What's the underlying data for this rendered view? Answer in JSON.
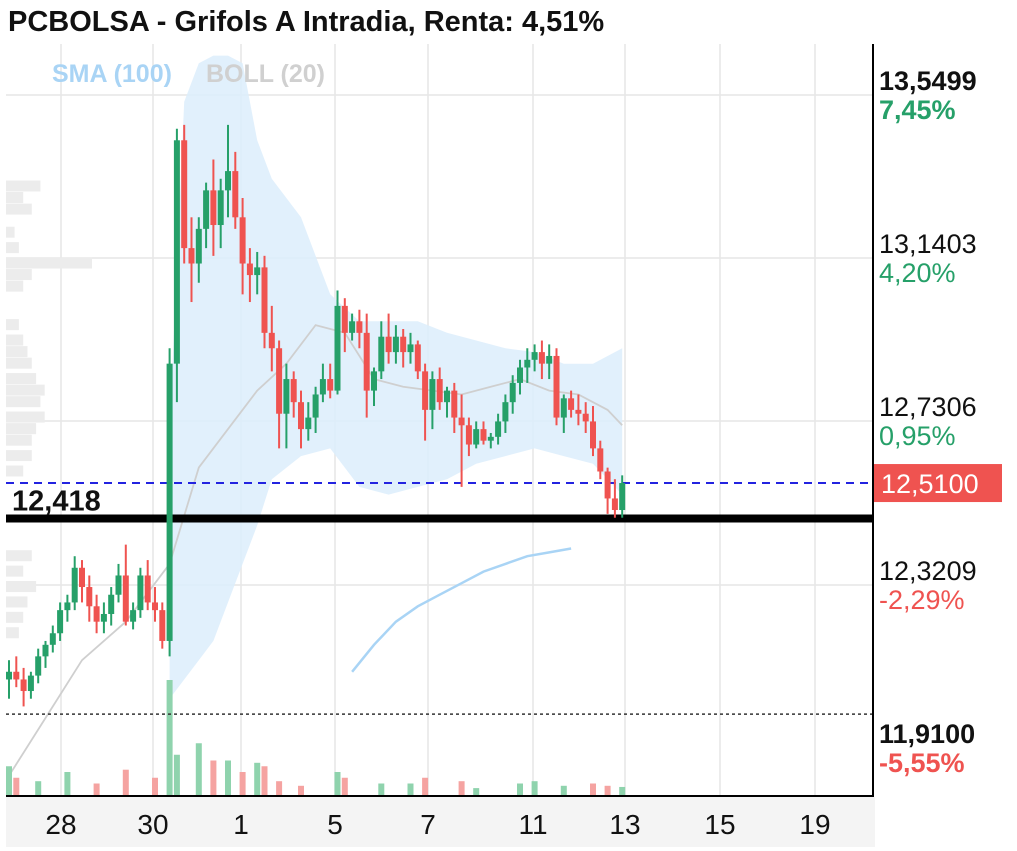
{
  "chart_data": {
    "type": "candlestick",
    "title": "PCBOLSA - Grifols A Intradia, Renta: 4,51%",
    "indicators": [
      {
        "name": "SMA (100)",
        "color": "#a9d4f5"
      },
      {
        "name": "BOLL (20)",
        "color": "#d0d0d0"
      }
    ],
    "x_tick_labels": [
      "28",
      "30",
      "1",
      "5",
      "7",
      "11",
      "13",
      "15",
      "19"
    ],
    "y_axis_labels": [
      {
        "price": "13,5499",
        "pct": "7,45%",
        "bold": true,
        "pct_color": "#26a069"
      },
      {
        "price": "13,1403",
        "pct": "4,20%",
        "bold": false,
        "pct_color": "#26a069"
      },
      {
        "price": "12,7306",
        "pct": "0,95%",
        "bold": false,
        "pct_color": "#26a069"
      },
      {
        "price": "12,3209",
        "pct": "-2,29%",
        "bold": false,
        "pct_color": "#ef5350"
      },
      {
        "price": "11,9100",
        "pct": "-5,55%",
        "bold": true,
        "pct_color": "#ef5350"
      }
    ],
    "y_range": [
      11.7,
      13.65
    ],
    "current_price": {
      "label": "12,5100",
      "value": 12.51,
      "color": "#ef5350",
      "line_color": "#2323e0"
    },
    "reference_line": {
      "label": "12,418",
      "value": 12.418
    },
    "low_line": {
      "value": 11.91
    },
    "colors": {
      "up": "#26a069",
      "down": "#ef5350"
    },
    "candles": [
      [
        12.0,
        12.05,
        11.95,
        12.02
      ],
      [
        12.02,
        12.06,
        11.98,
        12.0
      ],
      [
        12.0,
        12.03,
        11.93,
        11.97
      ],
      [
        11.97,
        12.02,
        11.95,
        12.01
      ],
      [
        12.01,
        12.08,
        11.99,
        12.06
      ],
      [
        12.06,
        12.1,
        12.03,
        12.09
      ],
      [
        12.09,
        12.14,
        12.07,
        12.12
      ],
      [
        12.12,
        12.2,
        12.1,
        12.18
      ],
      [
        12.18,
        12.22,
        12.15,
        12.2
      ],
      [
        12.2,
        12.32,
        12.18,
        12.29
      ],
      [
        12.29,
        12.31,
        12.2,
        12.24
      ],
      [
        12.24,
        12.27,
        12.15,
        12.19
      ],
      [
        12.19,
        12.22,
        12.12,
        12.15
      ],
      [
        12.15,
        12.2,
        12.12,
        12.17
      ],
      [
        12.17,
        12.24,
        12.14,
        12.22
      ],
      [
        12.22,
        12.3,
        12.2,
        12.27
      ],
      [
        12.27,
        12.35,
        12.14,
        12.15
      ],
      [
        12.15,
        12.2,
        12.13,
        12.18
      ],
      [
        12.18,
        12.29,
        12.16,
        12.27
      ],
      [
        12.27,
        12.31,
        12.18,
        12.2
      ],
      [
        12.2,
        12.24,
        12.15,
        12.18
      ],
      [
        12.18,
        12.2,
        12.08,
        12.1
      ],
      [
        12.1,
        12.86,
        12.06,
        12.82
      ],
      [
        12.82,
        13.43,
        12.72,
        13.4
      ],
      [
        13.4,
        13.44,
        13.08,
        13.12
      ],
      [
        13.12,
        13.2,
        12.98,
        13.08
      ],
      [
        13.08,
        13.2,
        13.03,
        13.17
      ],
      [
        13.17,
        13.29,
        13.12,
        13.27
      ],
      [
        13.27,
        13.35,
        13.1,
        13.18
      ],
      [
        13.18,
        13.3,
        13.12,
        13.27
      ],
      [
        13.27,
        13.44,
        13.2,
        13.32
      ],
      [
        13.32,
        13.37,
        13.17,
        13.2
      ],
      [
        13.2,
        13.25,
        13.0,
        13.08
      ],
      [
        13.08,
        13.12,
        12.98,
        13.05
      ],
      [
        13.05,
        13.11,
        13.0,
        13.07
      ],
      [
        13.07,
        13.1,
        12.86,
        12.9
      ],
      [
        12.9,
        12.97,
        12.8,
        12.86
      ],
      [
        12.86,
        12.88,
        12.6,
        12.69
      ],
      [
        12.69,
        12.82,
        12.6,
        12.78
      ],
      [
        12.78,
        12.8,
        12.68,
        12.72
      ],
      [
        12.72,
        12.75,
        12.6,
        12.65
      ],
      [
        12.65,
        12.72,
        12.62,
        12.68
      ],
      [
        12.68,
        12.76,
        12.64,
        12.74
      ],
      [
        12.74,
        12.82,
        12.72,
        12.78
      ],
      [
        12.78,
        12.82,
        12.73,
        12.75
      ],
      [
        12.75,
        13.01,
        12.74,
        12.97
      ],
      [
        12.97,
        12.99,
        12.85,
        12.9
      ],
      [
        12.9,
        12.95,
        12.88,
        12.93
      ],
      [
        12.93,
        12.96,
        12.86,
        12.9
      ],
      [
        12.9,
        12.95,
        12.68,
        12.75
      ],
      [
        12.75,
        12.81,
        12.71,
        12.8
      ],
      [
        12.8,
        12.93,
        12.78,
        12.89
      ],
      [
        12.89,
        12.95,
        12.82,
        12.85
      ],
      [
        12.85,
        12.92,
        12.82,
        12.89
      ],
      [
        12.89,
        12.91,
        12.81,
        12.85
      ],
      [
        12.85,
        12.9,
        12.82,
        12.87
      ],
      [
        12.87,
        12.88,
        12.78,
        12.8
      ],
      [
        12.8,
        12.82,
        12.62,
        12.7
      ],
      [
        12.7,
        12.8,
        12.65,
        12.78
      ],
      [
        12.78,
        12.81,
        12.7,
        12.72
      ],
      [
        12.72,
        12.76,
        12.68,
        12.75
      ],
      [
        12.75,
        12.77,
        12.64,
        12.68
      ],
      [
        12.68,
        12.74,
        12.5,
        12.66
      ],
      [
        12.66,
        12.68,
        12.58,
        12.61
      ],
      [
        12.61,
        12.67,
        12.6,
        12.65
      ],
      [
        12.65,
        12.67,
        12.61,
        12.62
      ],
      [
        12.62,
        12.64,
        12.6,
        12.63
      ],
      [
        12.63,
        12.69,
        12.61,
        12.67
      ],
      [
        12.67,
        12.74,
        12.64,
        12.72
      ],
      [
        12.72,
        12.79,
        12.69,
        12.77
      ],
      [
        12.77,
        12.83,
        12.74,
        12.81
      ],
      [
        12.81,
        12.86,
        12.77,
        12.83
      ],
      [
        12.83,
        12.87,
        12.8,
        12.85
      ],
      [
        12.85,
        12.88,
        12.78,
        12.82
      ],
      [
        12.82,
        12.87,
        12.78,
        12.84
      ],
      [
        12.84,
        12.86,
        12.66,
        12.68
      ],
      [
        12.68,
        12.74,
        12.64,
        12.73
      ],
      [
        12.73,
        12.75,
        12.68,
        12.7
      ],
      [
        12.7,
        12.74,
        12.66,
        12.69
      ],
      [
        12.69,
        12.72,
        12.64,
        12.67
      ],
      [
        12.67,
        12.71,
        12.58,
        12.6
      ],
      [
        12.6,
        12.62,
        12.52,
        12.54
      ],
      [
        12.54,
        12.55,
        12.43,
        12.47
      ],
      [
        12.47,
        12.52,
        12.42,
        12.44
      ],
      [
        12.44,
        12.53,
        12.42,
        12.51
      ]
    ],
    "volume_bars": [
      {
        "i": 0,
        "v": 0.25
      },
      {
        "i": 1,
        "v": 0.15
      },
      {
        "i": 4,
        "v": 0.12
      },
      {
        "i": 8,
        "v": 0.2
      },
      {
        "i": 12,
        "v": 0.1
      },
      {
        "i": 16,
        "v": 0.22
      },
      {
        "i": 20,
        "v": 0.15
      },
      {
        "i": 22,
        "v": 1.0
      },
      {
        "i": 23,
        "v": 0.35
      },
      {
        "i": 26,
        "v": 0.45
      },
      {
        "i": 28,
        "v": 0.3
      },
      {
        "i": 30,
        "v": 0.3
      },
      {
        "i": 32,
        "v": 0.2
      },
      {
        "i": 34,
        "v": 0.28
      },
      {
        "i": 35,
        "v": 0.25
      },
      {
        "i": 37,
        "v": 0.12
      },
      {
        "i": 40,
        "v": 0.08
      },
      {
        "i": 45,
        "v": 0.2
      },
      {
        "i": 46,
        "v": 0.15
      },
      {
        "i": 51,
        "v": 0.1
      },
      {
        "i": 55,
        "v": 0.1
      },
      {
        "i": 57,
        "v": 0.15
      },
      {
        "i": 62,
        "v": 0.12
      },
      {
        "i": 64,
        "v": 0.06
      },
      {
        "i": 70,
        "v": 0.1
      },
      {
        "i": 72,
        "v": 0.12
      },
      {
        "i": 76,
        "v": 0.08
      },
      {
        "i": 80,
        "v": 0.1
      },
      {
        "i": 82,
        "v": 0.08
      },
      {
        "i": 84,
        "v": 0.07
      }
    ],
    "sma_points": [
      [
        47,
        12.02
      ],
      [
        50,
        12.09
      ],
      [
        53,
        12.15
      ],
      [
        56,
        12.19
      ],
      [
        59,
        12.22
      ],
      [
        62,
        12.25
      ],
      [
        65,
        12.28
      ],
      [
        68,
        12.3
      ],
      [
        71,
        12.32
      ],
      [
        74,
        12.33
      ],
      [
        77,
        12.34
      ]
    ],
    "boll_upper": [
      [
        22,
        12.65
      ],
      [
        24,
        13.5
      ],
      [
        26,
        13.6
      ],
      [
        28,
        13.62
      ],
      [
        30,
        13.62
      ],
      [
        32,
        13.6
      ],
      [
        34,
        13.4
      ],
      [
        36,
        13.3
      ],
      [
        40,
        13.2
      ],
      [
        44,
        13.0
      ],
      [
        48,
        12.93
      ],
      [
        52,
        12.93
      ],
      [
        56,
        12.93
      ],
      [
        60,
        12.9
      ],
      [
        64,
        12.88
      ],
      [
        68,
        12.86
      ],
      [
        72,
        12.85
      ],
      [
        76,
        12.82
      ],
      [
        80,
        12.82
      ],
      [
        84,
        12.86
      ]
    ],
    "boll_lower": [
      [
        22,
        11.95
      ],
      [
        24,
        12.0
      ],
      [
        26,
        12.05
      ],
      [
        28,
        12.1
      ],
      [
        30,
        12.2
      ],
      [
        32,
        12.3
      ],
      [
        34,
        12.4
      ],
      [
        36,
        12.52
      ],
      [
        40,
        12.58
      ],
      [
        44,
        12.6
      ],
      [
        48,
        12.5
      ],
      [
        52,
        12.48
      ],
      [
        56,
        12.5
      ],
      [
        60,
        12.52
      ],
      [
        64,
        12.56
      ],
      [
        68,
        12.58
      ],
      [
        72,
        12.6
      ],
      [
        76,
        12.58
      ],
      [
        80,
        12.56
      ],
      [
        84,
        12.48
      ]
    ],
    "boll_mid": [
      [
        0,
        11.75
      ],
      [
        5,
        11.9
      ],
      [
        10,
        12.05
      ],
      [
        16,
        12.15
      ],
      [
        22,
        12.3
      ],
      [
        26,
        12.55
      ],
      [
        30,
        12.65
      ],
      [
        34,
        12.75
      ],
      [
        38,
        12.82
      ],
      [
        42,
        12.92
      ],
      [
        46,
        12.9
      ],
      [
        50,
        12.78
      ],
      [
        54,
        12.76
      ],
      [
        58,
        12.75
      ],
      [
        62,
        12.74
      ],
      [
        66,
        12.76
      ],
      [
        70,
        12.78
      ],
      [
        74,
        12.75
      ],
      [
        78,
        12.74
      ],
      [
        82,
        12.7
      ],
      [
        84,
        12.66
      ]
    ],
    "volume_profile": [
      {
        "value": 13.28,
        "w": 0.4
      },
      {
        "value": 13.25,
        "w": 0.2
      },
      {
        "value": 13.22,
        "w": 0.3
      },
      {
        "value": 13.16,
        "w": 0.1
      },
      {
        "value": 13.12,
        "w": 0.15
      },
      {
        "value": 13.08,
        "w": 1.0
      },
      {
        "value": 13.05,
        "w": 0.3
      },
      {
        "value": 13.02,
        "w": 0.2
      },
      {
        "value": 12.92,
        "w": 0.15
      },
      {
        "value": 12.88,
        "w": 0.2
      },
      {
        "value": 12.85,
        "w": 0.25
      },
      {
        "value": 12.82,
        "w": 0.3
      },
      {
        "value": 12.78,
        "w": 0.35
      },
      {
        "value": 12.75,
        "w": 0.45
      },
      {
        "value": 12.72,
        "w": 0.4
      },
      {
        "value": 12.68,
        "w": 0.45
      },
      {
        "value": 12.65,
        "w": 0.35
      },
      {
        "value": 12.62,
        "w": 0.3
      },
      {
        "value": 12.58,
        "w": 0.3
      },
      {
        "value": 12.54,
        "w": 0.2
      },
      {
        "value": 12.32,
        "w": 0.3
      },
      {
        "value": 12.28,
        "w": 0.2
      },
      {
        "value": 12.24,
        "w": 0.35
      },
      {
        "value": 12.2,
        "w": 0.25
      },
      {
        "value": 12.16,
        "w": 0.2
      },
      {
        "value": 12.12,
        "w": 0.15
      }
    ]
  }
}
